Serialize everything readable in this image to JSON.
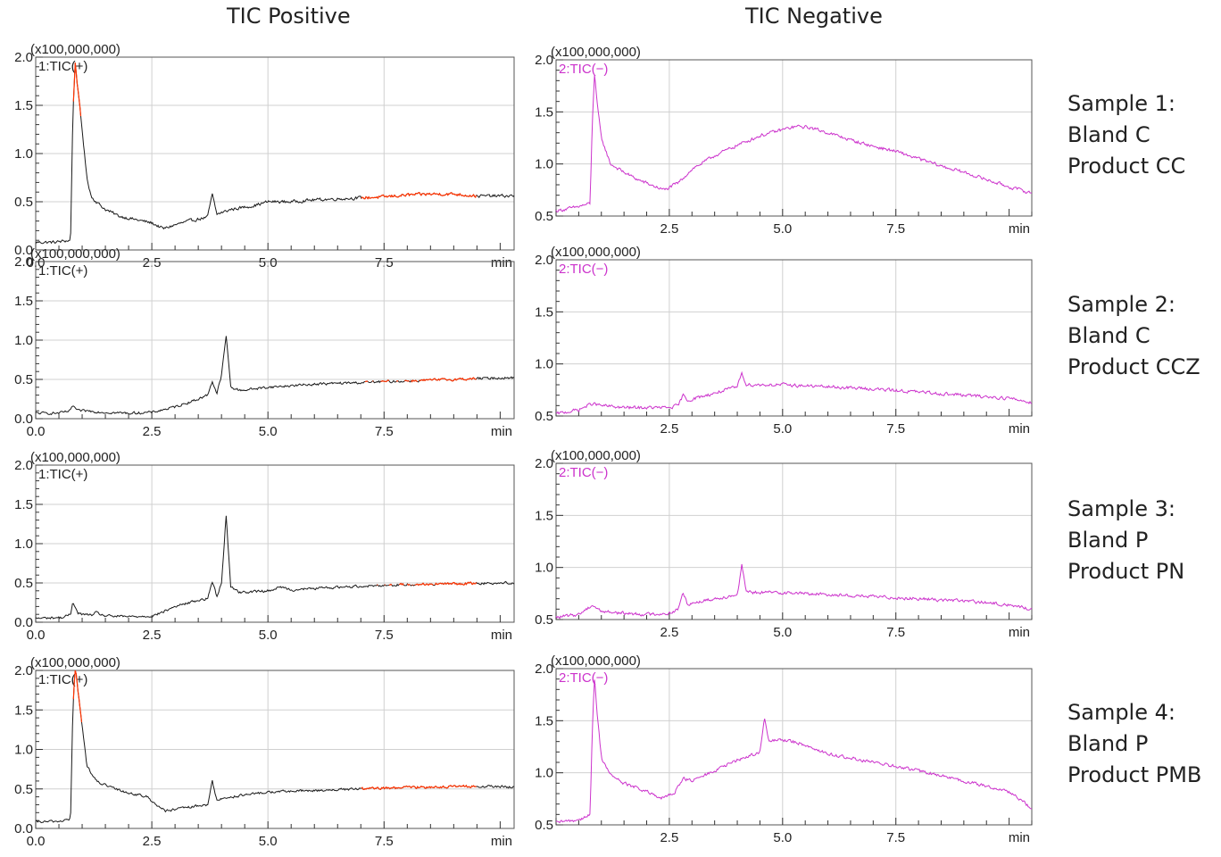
{
  "titles": {
    "positive": "TIC Positive",
    "negative": "TIC Negative"
  },
  "samples": [
    {
      "line1": "Sample 1:",
      "line2": "Bland C",
      "line3": "Product CC"
    },
    {
      "line1": "Sample 2:",
      "line2": "Bland C",
      "line3": "Product CCZ"
    },
    {
      "line1": "Sample 3:",
      "line2": "Bland P",
      "line3": "Product PN"
    },
    {
      "line1": "Sample 4:",
      "line2": "Bland P",
      "line3": "Product PMB"
    }
  ],
  "colors": {
    "positive": "#1a1a1a",
    "positive_saturated": "#ff3300",
    "negative": "#cc33cc",
    "grid": "#d0d0d0",
    "frame": "#555555"
  },
  "chart_data": [
    {
      "id": "s1-pos",
      "type": "line",
      "mode": "pos",
      "trace_label": "1:TIC(+)",
      "scale_label": "(x100,000,000)",
      "x_unit": "min",
      "xlim": [
        0.0,
        10.3
      ],
      "ylim": [
        0.0,
        2.0
      ],
      "x_ticks": [
        "0.0",
        "2.5",
        "5.0",
        "7.5"
      ],
      "y_ticks": [
        "0.0",
        "0.5",
        "1.0",
        "1.5",
        "2.0"
      ],
      "series": [
        {
          "x": [
            0.0,
            0.4,
            0.75,
            0.8,
            0.85,
            0.9,
            1.0,
            1.1,
            1.2,
            1.35,
            1.5,
            1.8,
            2.2,
            2.5,
            2.75,
            3.0,
            3.3,
            3.7,
            3.8,
            3.9,
            4.2,
            4.7,
            5.0,
            5.5,
            6.0,
            6.5,
            7.0,
            7.5,
            8.0,
            8.5,
            9.0,
            9.5,
            10.0,
            10.3
          ],
          "y": [
            0.08,
            0.08,
            0.1,
            1.4,
            1.95,
            1.7,
            1.25,
            0.75,
            0.55,
            0.48,
            0.42,
            0.35,
            0.31,
            0.28,
            0.22,
            0.26,
            0.3,
            0.34,
            0.58,
            0.37,
            0.42,
            0.46,
            0.5,
            0.5,
            0.52,
            0.53,
            0.54,
            0.55,
            0.57,
            0.58,
            0.58,
            0.56,
            0.56,
            0.56
          ]
        }
      ]
    },
    {
      "id": "s1-neg",
      "type": "line",
      "mode": "neg",
      "trace_label": "2:TIC(−)",
      "scale_label": "(x100,000,000)",
      "x_unit": "min",
      "xlim": [
        0.0,
        10.5
      ],
      "ylim": [
        0.5,
        2.0
      ],
      "x_ticks": [
        "2.5",
        "5.0",
        "7.5"
      ],
      "y_ticks": [
        "0.5",
        "1.0",
        "1.5",
        "2.0"
      ],
      "series": [
        {
          "x": [
            0.0,
            0.4,
            0.75,
            0.8,
            0.85,
            0.9,
            1.0,
            1.2,
            1.5,
            1.8,
            2.2,
            2.4,
            2.7,
            3.0,
            3.5,
            4.0,
            4.5,
            5.0,
            5.3,
            5.6,
            6.0,
            6.5,
            7.0,
            7.5,
            8.0,
            8.5,
            9.0,
            9.5,
            10.0,
            10.5
          ],
          "y": [
            0.55,
            0.58,
            0.62,
            1.4,
            1.88,
            1.6,
            1.25,
            1.0,
            0.92,
            0.85,
            0.78,
            0.75,
            0.82,
            0.95,
            1.08,
            1.18,
            1.27,
            1.33,
            1.36,
            1.35,
            1.3,
            1.23,
            1.17,
            1.12,
            1.05,
            0.98,
            0.92,
            0.85,
            0.78,
            0.72
          ]
        }
      ]
    },
    {
      "id": "s2-pos",
      "type": "line",
      "mode": "pos",
      "trace_label": "1:TIC(+)",
      "scale_label": "(x100,000,000)",
      "x_unit": "min",
      "xlim": [
        0.0,
        10.3
      ],
      "ylim": [
        0.0,
        2.0
      ],
      "x_ticks": [
        "0.0",
        "2.5",
        "5.0",
        "7.5"
      ],
      "y_ticks": [
        "0.0",
        "0.5",
        "1.0",
        "1.5",
        "2.0"
      ],
      "series": [
        {
          "x": [
            0.0,
            0.5,
            0.75,
            0.8,
            0.9,
            1.1,
            1.5,
            2.0,
            2.5,
            3.0,
            3.5,
            3.7,
            3.8,
            3.9,
            4.0,
            4.1,
            4.2,
            4.4,
            5.0,
            5.5,
            6.0,
            7.0,
            8.0,
            9.0,
            10.0,
            10.3
          ],
          "y": [
            0.07,
            0.07,
            0.1,
            0.17,
            0.1,
            0.1,
            0.08,
            0.07,
            0.08,
            0.15,
            0.25,
            0.3,
            0.48,
            0.32,
            0.55,
            1.06,
            0.4,
            0.36,
            0.4,
            0.42,
            0.44,
            0.46,
            0.48,
            0.5,
            0.52,
            0.52
          ]
        }
      ]
    },
    {
      "id": "s2-neg",
      "type": "line",
      "mode": "neg",
      "trace_label": "2:TIC(−)",
      "scale_label": "(x100,000,000)",
      "x_unit": "min",
      "xlim": [
        0.0,
        10.5
      ],
      "ylim": [
        0.5,
        2.0
      ],
      "x_ticks": [
        "2.5",
        "5.0",
        "7.5"
      ],
      "y_ticks": [
        "0.5",
        "1.0",
        "1.5",
        "2.0"
      ],
      "series": [
        {
          "x": [
            0.0,
            0.5,
            0.8,
            1.0,
            1.5,
            2.0,
            2.5,
            2.7,
            2.8,
            2.9,
            3.5,
            4.0,
            4.1,
            4.2,
            4.5,
            5.0,
            6.0,
            7.0,
            8.0,
            9.0,
            10.0,
            10.5
          ],
          "y": [
            0.52,
            0.56,
            0.62,
            0.6,
            0.58,
            0.58,
            0.58,
            0.6,
            0.7,
            0.65,
            0.72,
            0.78,
            0.92,
            0.8,
            0.8,
            0.8,
            0.78,
            0.76,
            0.73,
            0.7,
            0.67,
            0.63
          ]
        }
      ]
    },
    {
      "id": "s3-pos",
      "type": "line",
      "mode": "pos",
      "trace_label": "1:TIC(+)",
      "scale_label": "(x100,000,000)",
      "x_unit": "min",
      "xlim": [
        0.0,
        10.3
      ],
      "ylim": [
        0.0,
        2.0
      ],
      "x_ticks": [
        "0.0",
        "2.5",
        "5.0",
        "7.5"
      ],
      "y_ticks": [
        "0.0",
        "0.5",
        "1.0",
        "1.5",
        "2.0"
      ],
      "series": [
        {
          "x": [
            0.0,
            0.6,
            0.75,
            0.8,
            0.9,
            1.0,
            1.2,
            1.3,
            1.5,
            2.0,
            2.5,
            2.7,
            3.0,
            3.5,
            3.7,
            3.8,
            3.9,
            4.0,
            4.1,
            4.2,
            4.4,
            5.0,
            5.3,
            5.5,
            6.0,
            7.0,
            8.0,
            9.0,
            10.0,
            10.3
          ],
          "y": [
            0.05,
            0.06,
            0.1,
            0.27,
            0.12,
            0.1,
            0.09,
            0.12,
            0.08,
            0.07,
            0.08,
            0.12,
            0.2,
            0.28,
            0.3,
            0.52,
            0.33,
            0.5,
            1.36,
            0.45,
            0.38,
            0.4,
            0.45,
            0.41,
            0.43,
            0.46,
            0.48,
            0.49,
            0.5,
            0.5
          ]
        }
      ]
    },
    {
      "id": "s3-neg",
      "type": "line",
      "mode": "neg",
      "trace_label": "2:TIC(−)",
      "scale_label": "(x100,000,000)",
      "x_unit": "min",
      "xlim": [
        0.0,
        10.5
      ],
      "ylim": [
        0.5,
        2.0
      ],
      "x_ticks": [
        "2.5",
        "5.0",
        "7.5"
      ],
      "y_ticks": [
        "0.5",
        "1.0",
        "1.5",
        "2.0"
      ],
      "series": [
        {
          "x": [
            0.0,
            0.5,
            0.8,
            1.0,
            1.5,
            2.0,
            2.5,
            2.7,
            2.8,
            2.9,
            3.5,
            4.0,
            4.1,
            4.2,
            4.5,
            5.0,
            6.0,
            7.0,
            8.0,
            9.0,
            10.0,
            10.5
          ],
          "y": [
            0.52,
            0.55,
            0.64,
            0.58,
            0.56,
            0.55,
            0.56,
            0.6,
            0.76,
            0.65,
            0.7,
            0.74,
            1.02,
            0.76,
            0.76,
            0.76,
            0.74,
            0.72,
            0.7,
            0.68,
            0.64,
            0.6
          ]
        }
      ]
    },
    {
      "id": "s4-pos",
      "type": "line",
      "mode": "pos",
      "trace_label": "1:TIC(+)",
      "scale_label": "(x100,000,000)",
      "x_unit": "min",
      "xlim": [
        0.0,
        10.3
      ],
      "ylim": [
        0.0,
        2.0
      ],
      "x_ticks": [
        "0.0",
        "2.5",
        "5.0",
        "7.5"
      ],
      "y_ticks": [
        "0.0",
        "0.5",
        "1.0",
        "1.5",
        "2.0"
      ],
      "series": [
        {
          "x": [
            0.0,
            0.5,
            0.75,
            0.8,
            0.85,
            0.9,
            1.0,
            1.1,
            1.3,
            1.6,
            2.0,
            2.4,
            2.6,
            2.8,
            3.2,
            3.7,
            3.8,
            3.9,
            4.2,
            5.0,
            6.0,
            7.0,
            8.0,
            9.0,
            10.0,
            10.3
          ],
          "y": [
            0.08,
            0.09,
            0.12,
            1.5,
            2.05,
            1.8,
            1.3,
            0.8,
            0.6,
            0.52,
            0.45,
            0.4,
            0.3,
            0.22,
            0.26,
            0.3,
            0.6,
            0.36,
            0.4,
            0.46,
            0.48,
            0.5,
            0.52,
            0.53,
            0.53,
            0.52
          ]
        }
      ]
    },
    {
      "id": "s4-neg",
      "type": "line",
      "mode": "neg",
      "trace_label": "2:TIC(−)",
      "scale_label": "(x100,000,000)",
      "x_unit": "min",
      "xlim": [
        0.0,
        10.5
      ],
      "ylim": [
        0.5,
        2.0
      ],
      "x_ticks": [
        "2.5",
        "5.0",
        "7.5"
      ],
      "y_ticks": [
        "0.5",
        "1.0",
        "1.5",
        "2.0"
      ],
      "series": [
        {
          "x": [
            0.0,
            0.5,
            0.75,
            0.8,
            0.85,
            0.9,
            1.0,
            1.2,
            1.5,
            2.0,
            2.3,
            2.6,
            2.8,
            3.0,
            3.5,
            4.0,
            4.5,
            4.6,
            4.7,
            5.0,
            5.5,
            6.0,
            7.0,
            8.0,
            9.0,
            10.0,
            10.5
          ],
          "y": [
            0.52,
            0.55,
            0.6,
            1.4,
            1.92,
            1.6,
            1.15,
            0.98,
            0.9,
            0.82,
            0.75,
            0.8,
            0.95,
            0.92,
            1.02,
            1.12,
            1.2,
            1.52,
            1.3,
            1.32,
            1.27,
            1.18,
            1.1,
            1.02,
            0.92,
            0.82,
            0.66
          ]
        }
      ]
    }
  ]
}
